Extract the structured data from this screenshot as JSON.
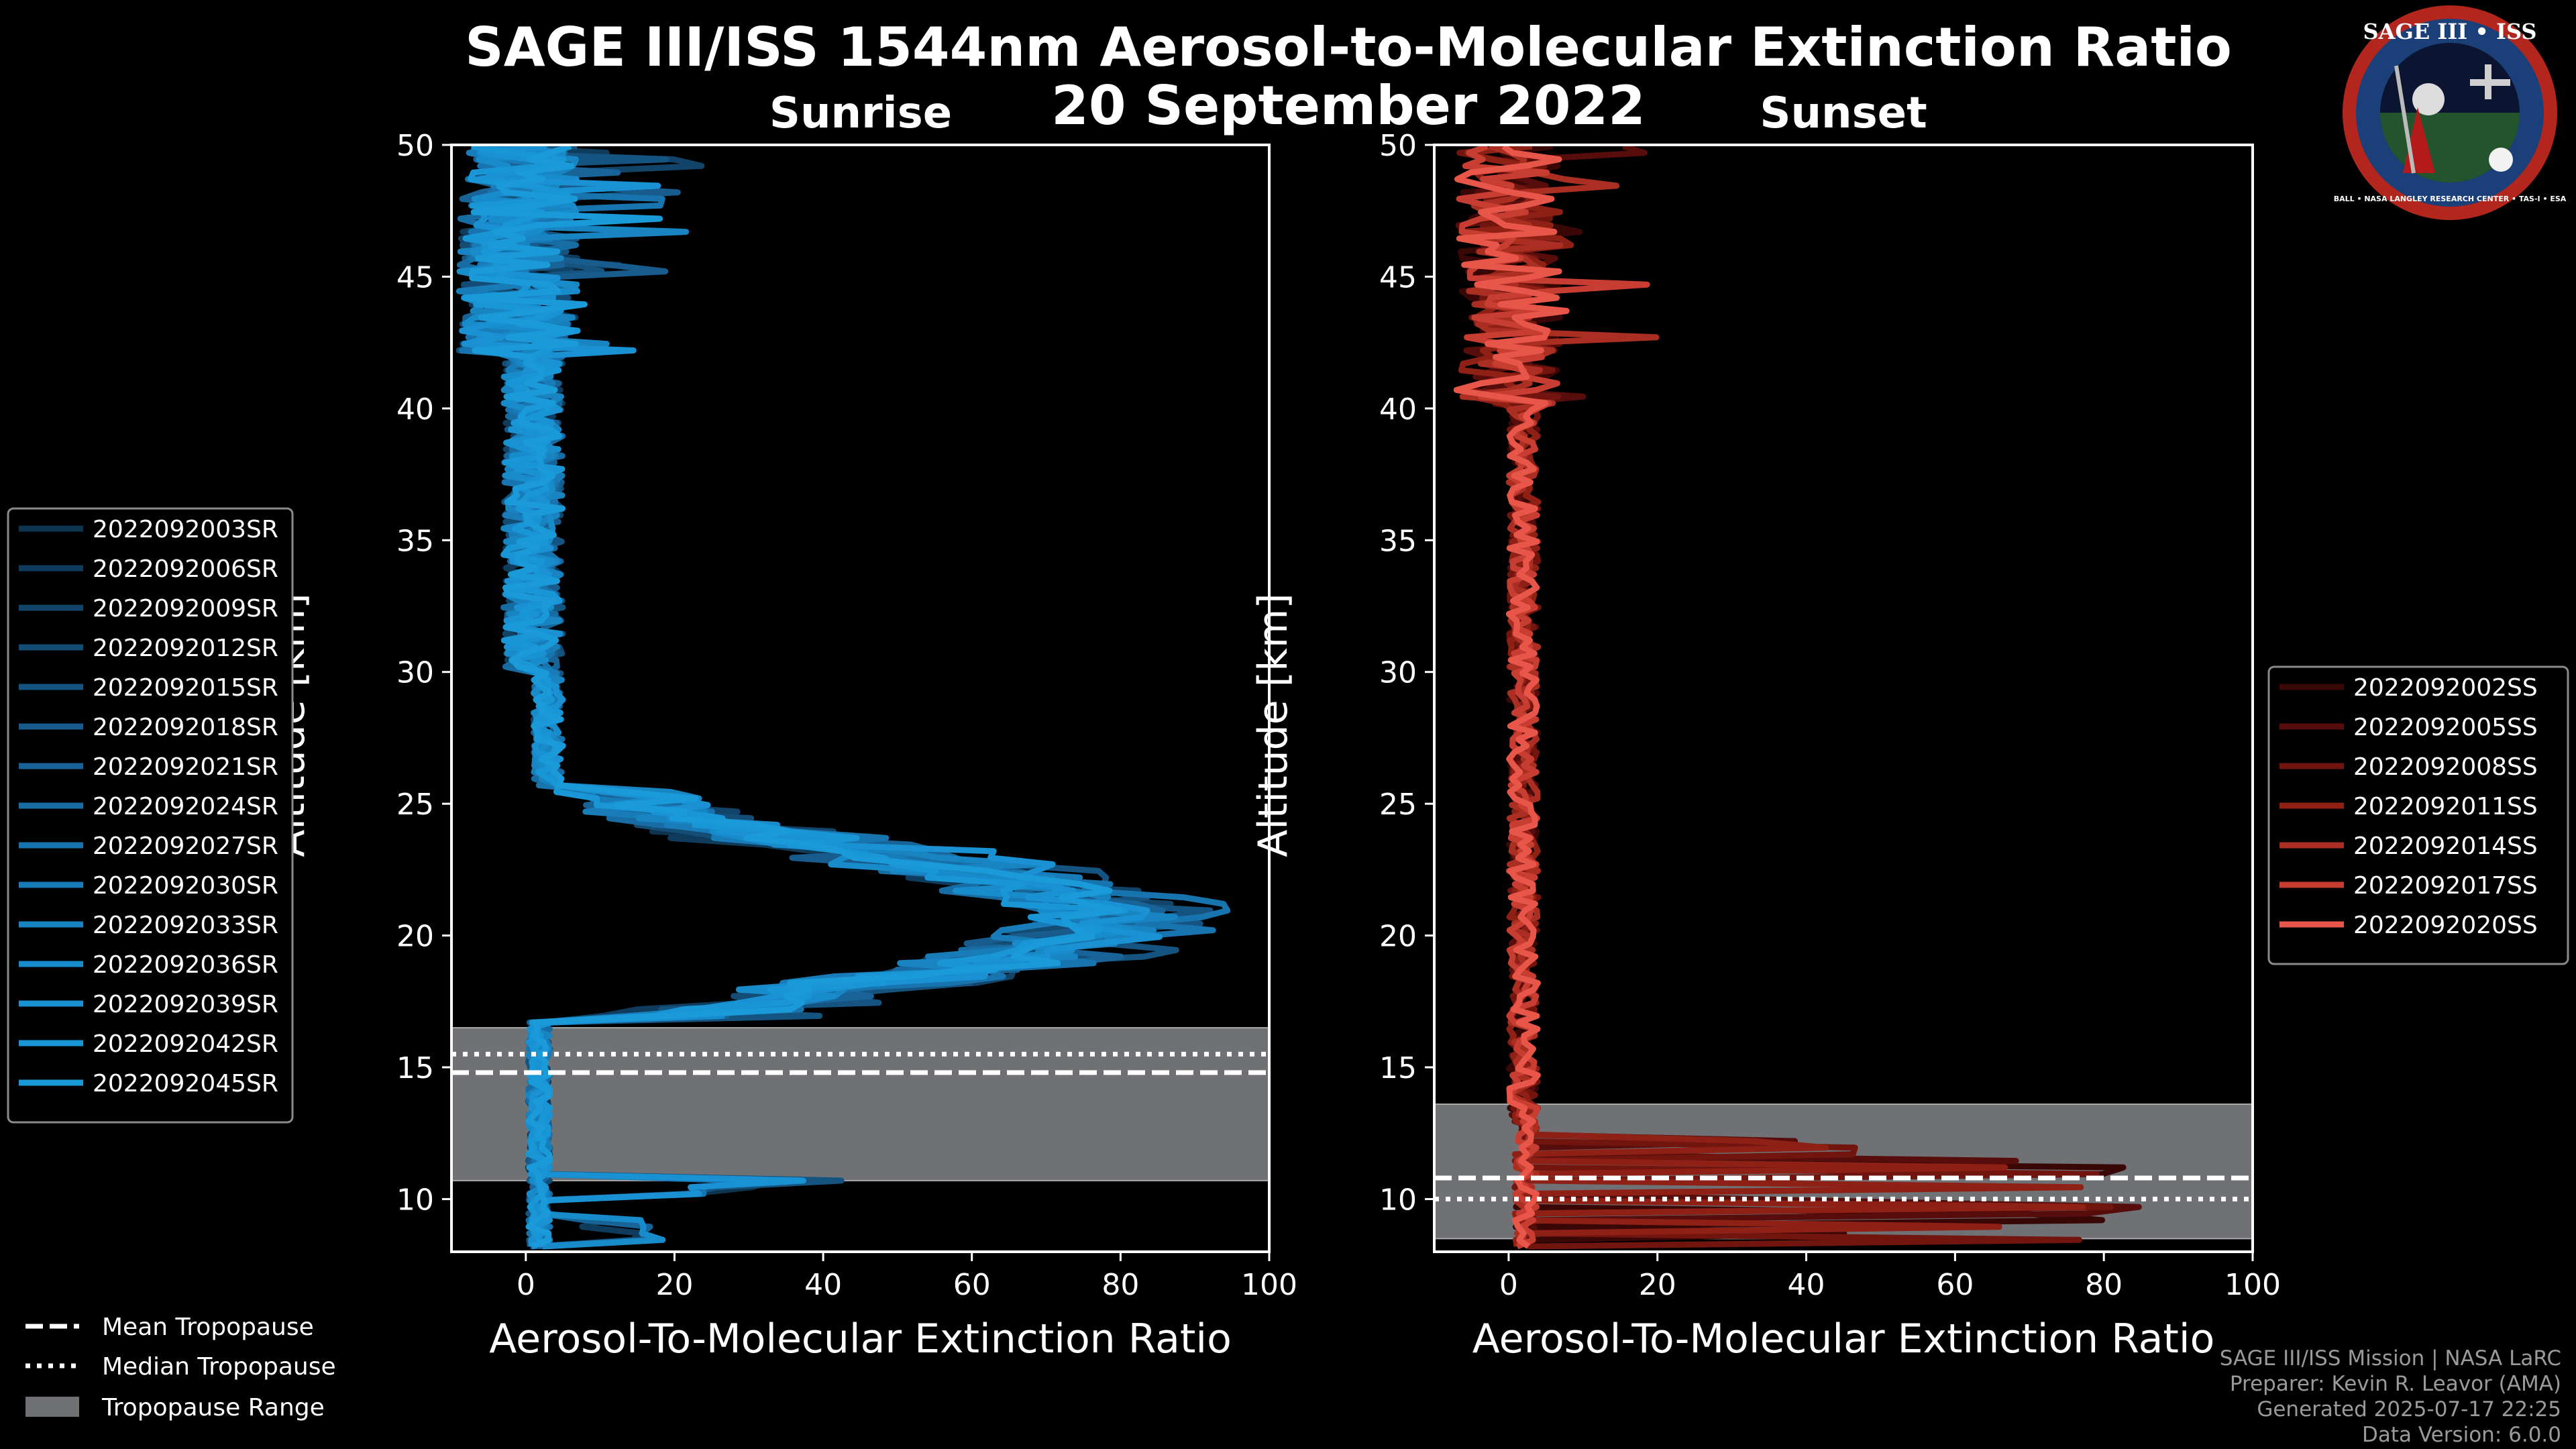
{
  "title": "SAGE III/ISS 1544nm Aerosol-to-Molecular Extinction Ratio",
  "date": "20 September 2022",
  "logo": {
    "line1": "SAGE III • ISS",
    "ring": "BALL • NASA LANGLEY RESEARCH CENTER • TAS-I • ESA"
  },
  "colors": {
    "background": "#000000",
    "sunrise": "#1a9ad8",
    "sunset": "#e8564a",
    "tropopause_band": "#6f7174"
  },
  "credits": [
    "SAGE III/ISS Mission | NASA LaRC",
    "Preparer: Kevin R. Leavor (AMA)",
    "Generated 2025-07-17 22:25",
    "Data Version: 6.0.0"
  ],
  "common_legend": [
    {
      "style": "dashed",
      "label": "Mean Tropopause"
    },
    {
      "style": "dotted",
      "label": "Median Tropopause"
    },
    {
      "style": "patch",
      "label": "Tropopause Range"
    }
  ],
  "chart_data": [
    {
      "type": "line",
      "subtitle": "Sunrise",
      "xlabel": "Aerosol-To-Molecular Extinction Ratio",
      "ylabel": "Altitude [km]",
      "xlim": [
        -10,
        100
      ],
      "ylim": [
        8,
        50
      ],
      "xticks": [
        0,
        20,
        40,
        60,
        80,
        100
      ],
      "yticks": [
        10,
        15,
        20,
        25,
        30,
        35,
        40,
        45,
        50
      ],
      "tropopause": {
        "mean": 14.8,
        "median": 15.5,
        "range": [
          10.7,
          16.5
        ]
      },
      "legend_position": "left",
      "series": [
        {
          "name": "2022092003SR",
          "color": "#0d3550",
          "peak": 76,
          "seed": 3
        },
        {
          "name": "2022092006SR",
          "color": "#0f3c5c",
          "peak": 68,
          "seed": 6
        },
        {
          "name": "2022092009SR",
          "color": "#114468",
          "peak": 82,
          "seed": 9
        },
        {
          "name": "2022092012SR",
          "color": "#134c74",
          "peak": 71,
          "seed": 12
        },
        {
          "name": "2022092015SR",
          "color": "#155480",
          "peak": 85,
          "seed": 15
        },
        {
          "name": "2022092018SR",
          "color": "#175c8c",
          "peak": 74,
          "seed": 18
        },
        {
          "name": "2022092021SR",
          "color": "#186498",
          "peak": 79,
          "seed": 21
        },
        {
          "name": "2022092024SR",
          "color": "#186ca4",
          "peak": 72,
          "seed": 24
        },
        {
          "name": "2022092027SR",
          "color": "#1874ae",
          "peak": 88,
          "seed": 27
        },
        {
          "name": "2022092030SR",
          "color": "#187cb8",
          "peak": 70,
          "seed": 30
        },
        {
          "name": "2022092033SR",
          "color": "#1884c2",
          "peak": 80,
          "seed": 33
        },
        {
          "name": "2022092036SR",
          "color": "#188bcb",
          "peak": 75,
          "seed": 36
        },
        {
          "name": "2022092039SR",
          "color": "#1991d2",
          "peak": 78,
          "seed": 39
        },
        {
          "name": "2022092042SR",
          "color": "#1996d6",
          "peak": 73,
          "seed": 42
        },
        {
          "name": "2022092045SR",
          "color": "#1a9ad8",
          "peak": 77,
          "seed": 45
        }
      ]
    },
    {
      "type": "line",
      "subtitle": "Sunset",
      "xlabel": "Aerosol-To-Molecular Extinction Ratio",
      "ylabel": "Altitude [km]",
      "xlim": [
        -10,
        100
      ],
      "ylim": [
        8,
        50
      ],
      "xticks": [
        0,
        20,
        40,
        60,
        80,
        100
      ],
      "yticks": [
        10,
        15,
        20,
        25,
        30,
        35,
        40,
        45,
        50
      ],
      "tropopause": {
        "mean": 10.8,
        "median": 10.0,
        "range": [
          8.5,
          13.6
        ]
      },
      "legend_position": "right",
      "series": [
        {
          "name": "2022092002SS",
          "color": "#3a0707",
          "seed": 2
        },
        {
          "name": "2022092005SS",
          "color": "#560d0b",
          "seed": 5
        },
        {
          "name": "2022092008SS",
          "color": "#72150f",
          "seed": 8
        },
        {
          "name": "2022092011SS",
          "color": "#8e2016",
          "seed": 11
        },
        {
          "name": "2022092014SS",
          "color": "#aa2e22",
          "seed": 14
        },
        {
          "name": "2022092017SS",
          "color": "#c73d31",
          "seed": 17
        },
        {
          "name": "2022092020SS",
          "color": "#e8564a",
          "seed": 20
        }
      ]
    }
  ]
}
